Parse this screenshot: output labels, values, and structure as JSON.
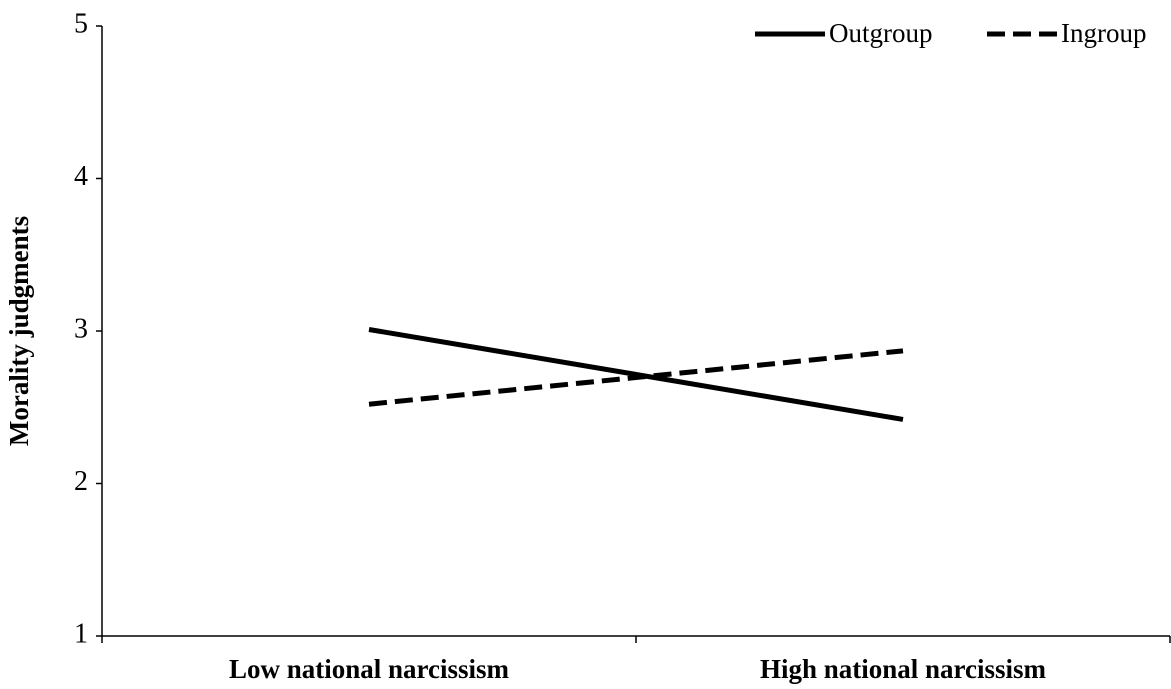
{
  "chart_data": {
    "type": "line",
    "y_label": "Morality judgments",
    "categories": [
      "Low national narcissism",
      "High national narcissism"
    ],
    "series": [
      {
        "name": "Outgroup",
        "color": "#000000",
        "dashed": false,
        "values": [
          3.01,
          2.42
        ]
      },
      {
        "name": "Ingroup",
        "color": "#000000",
        "dashed": true,
        "values": [
          2.52,
          2.87
        ]
      }
    ],
    "ylim": [
      1,
      5
    ],
    "yticks": [
      1,
      2,
      3,
      4,
      5
    ],
    "grid": false,
    "legend": "upper right"
  }
}
